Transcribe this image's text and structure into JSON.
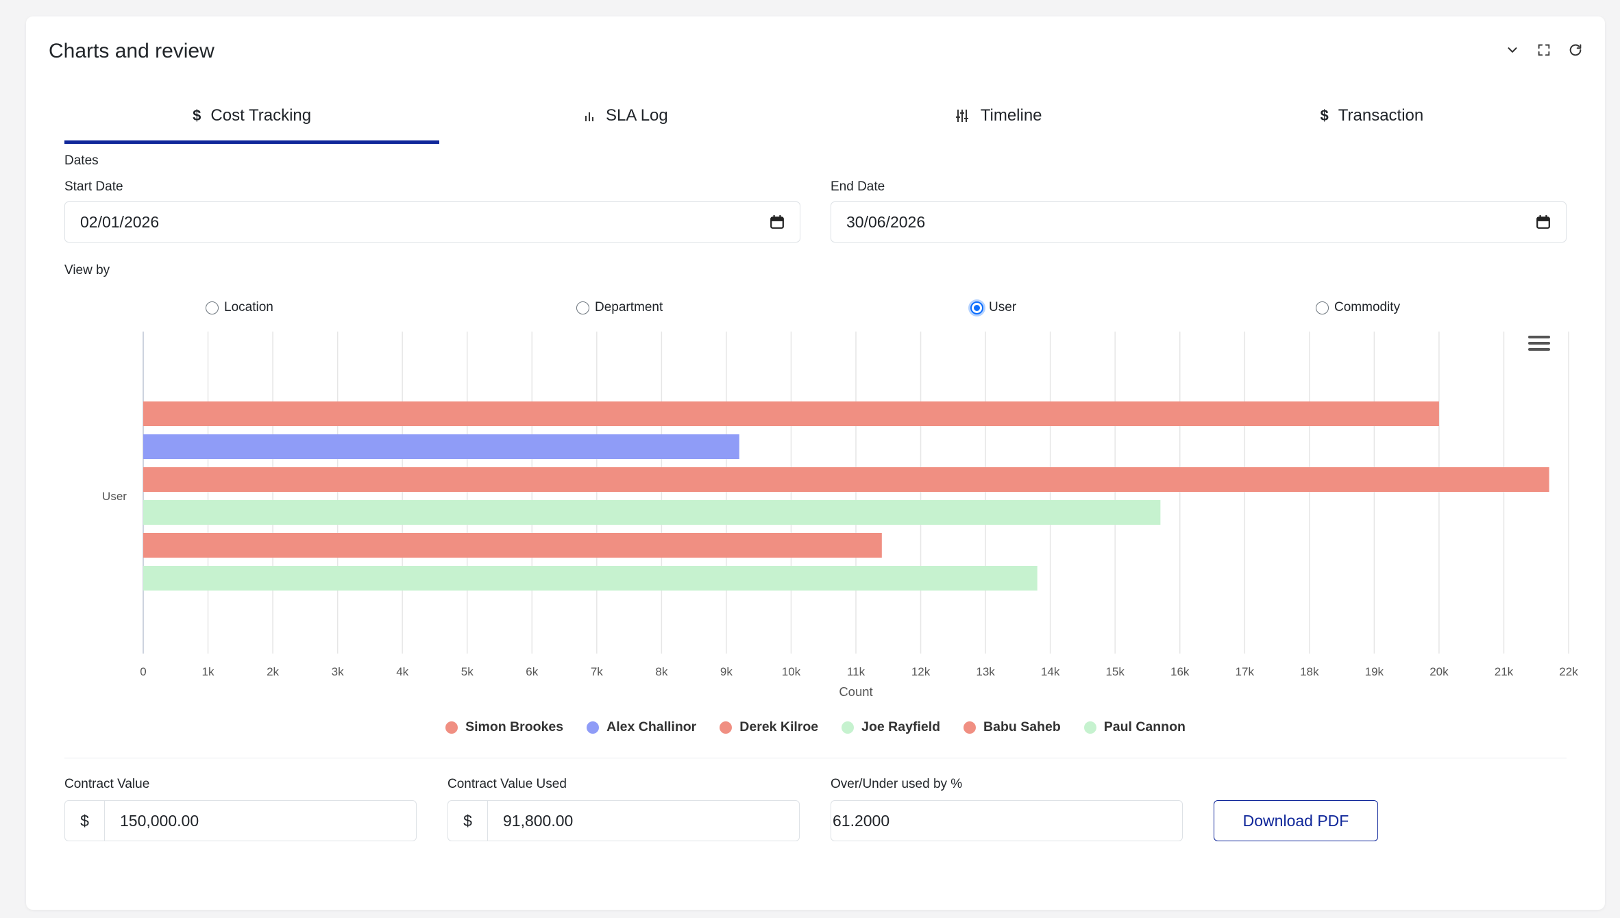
{
  "card": {
    "title": "Charts and review"
  },
  "tabs": [
    {
      "label": "Cost Tracking",
      "icon": "dollar-icon",
      "glyph": "$",
      "active": true
    },
    {
      "label": "SLA Log",
      "icon": "bar-chart-icon",
      "glyph": "",
      "active": false
    },
    {
      "label": "Timeline",
      "icon": "sliders-icon",
      "glyph": "",
      "active": false
    },
    {
      "label": "Transaction",
      "icon": "dollar-icon",
      "glyph": "$",
      "active": false
    }
  ],
  "dates": {
    "section_label": "Dates",
    "start_label": "Start Date",
    "start_value": "02/01/2026",
    "end_label": "End Date",
    "end_value": "30/06/2026"
  },
  "view_by": {
    "label": "View by",
    "options": [
      "Location",
      "Department",
      "User",
      "Commodity"
    ],
    "selected": "User"
  },
  "chart_data": {
    "type": "bar",
    "orientation": "horizontal",
    "ylabel": "User",
    "xlabel": "Count",
    "xlim": [
      0,
      22000
    ],
    "xticks": [
      "0",
      "1k",
      "2k",
      "3k",
      "4k",
      "5k",
      "6k",
      "7k",
      "8k",
      "9k",
      "10k",
      "11k",
      "12k",
      "13k",
      "14k",
      "15k",
      "16k",
      "17k",
      "18k",
      "19k",
      "20k",
      "21k",
      "22k"
    ],
    "grid": true,
    "legend_position": "bottom",
    "series": [
      {
        "name": "Simon Brookes",
        "value": 20000,
        "color": "#f08f82"
      },
      {
        "name": "Alex Challinor",
        "value": 9200,
        "color": "#8f9cf7"
      },
      {
        "name": "Derek Kilroe",
        "value": 21700,
        "color": "#f08f82"
      },
      {
        "name": "Joe Rayfield",
        "value": 15700,
        "color": "#c6f2cf"
      },
      {
        "name": "Babu Saheb",
        "value": 11400,
        "color": "#f08f82"
      },
      {
        "name": "Paul Cannon",
        "value": 13800,
        "color": "#c6f2cf"
      }
    ]
  },
  "summary": {
    "contract_value_label": "Contract Value",
    "contract_value_prefix": "$",
    "contract_value": "150,000.00",
    "contract_used_label": "Contract Value Used",
    "contract_used_prefix": "$",
    "contract_used": "91,800.00",
    "over_under_label": "Over/Under used by %",
    "over_under": "61.2000",
    "download_label": "Download PDF"
  }
}
